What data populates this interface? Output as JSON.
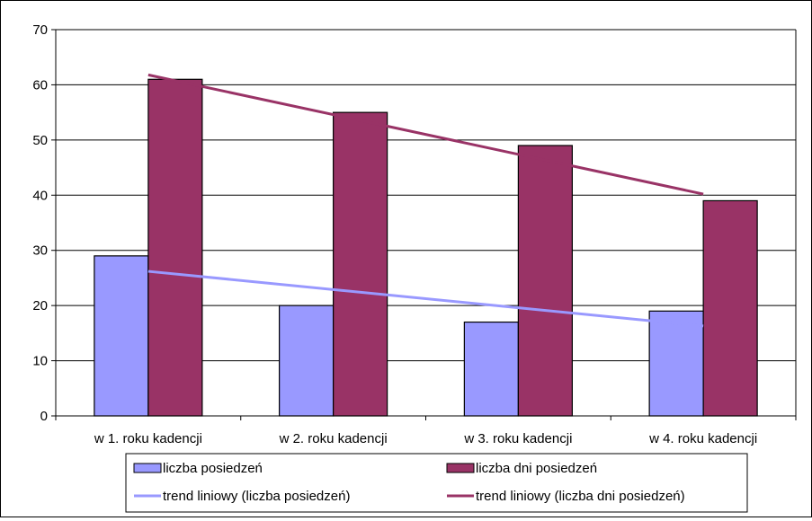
{
  "chart_data": {
    "type": "bar",
    "categories": [
      "w 1. roku kadencji",
      "w 2. roku kadencji",
      "w 3. roku kadencji",
      "w 4. roku kadencji"
    ],
    "series": [
      {
        "name": "liczba posiedzeń",
        "values": [
          29,
          20,
          17,
          19
        ],
        "color": "#9999ff"
      },
      {
        "name": "liczba dni posiedzeń",
        "values": [
          61,
          55,
          49,
          39
        ],
        "color": "#993366"
      }
    ],
    "trendlines": [
      {
        "name": "trend liniowy (liczba posiedzeń)",
        "of_series": 0,
        "start": 26.2,
        "end": 16.3,
        "color": "#9999ff"
      },
      {
        "name": "trend liniowy (liczba dni posiedzeń)",
        "of_series": 1,
        "start": 61.8,
        "end": 40.2,
        "color": "#993366"
      }
    ],
    "ylim": [
      0,
      70
    ],
    "yticks": [
      0,
      10,
      20,
      30,
      40,
      50,
      60,
      70
    ],
    "grid": true,
    "legend_position": "bottom"
  }
}
